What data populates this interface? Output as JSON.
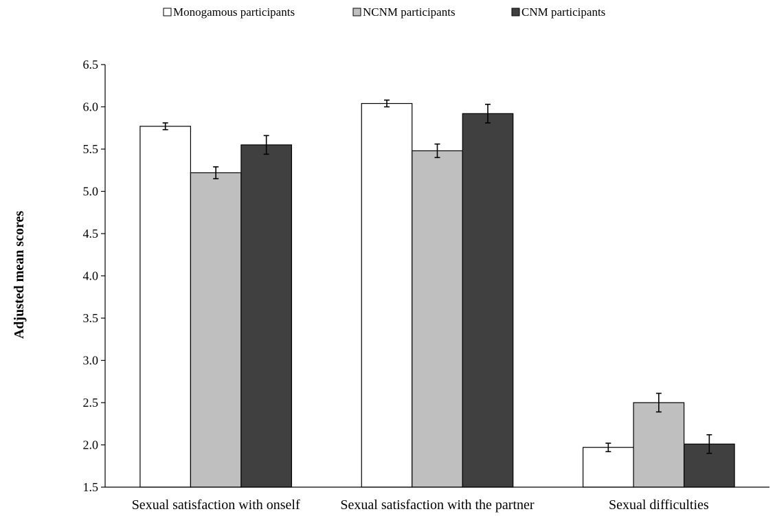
{
  "chart_data": {
    "type": "bar",
    "title": "",
    "xlabel": "",
    "ylabel": "Adjusted mean scores",
    "ylim": [
      1.5,
      6.5
    ],
    "yticks": [
      "1.5",
      "2.0",
      "2.5",
      "3.0",
      "3.5",
      "4.0",
      "4.5",
      "5.0",
      "5.5",
      "6.0",
      "6.5"
    ],
    "categories": [
      "Sexual satisfaction with onself",
      "Sexual satisfaction with the partner",
      "Sexual difficulties"
    ],
    "grid": false,
    "legend_position": "top",
    "error_bars": true,
    "series": [
      {
        "name": "Monogamous participants",
        "color": "#ffffff",
        "values": [
          5.77,
          6.04,
          1.97
        ],
        "errors": [
          0.04,
          0.04,
          0.05
        ]
      },
      {
        "name": "NCNM participants",
        "color": "#bfbfbf",
        "values": [
          5.22,
          5.48,
          2.5
        ],
        "errors": [
          0.07,
          0.08,
          0.11
        ]
      },
      {
        "name": "CNM participants",
        "color": "#404040",
        "values": [
          5.55,
          5.92,
          2.01
        ],
        "errors": [
          0.11,
          0.11,
          0.11
        ]
      }
    ]
  }
}
